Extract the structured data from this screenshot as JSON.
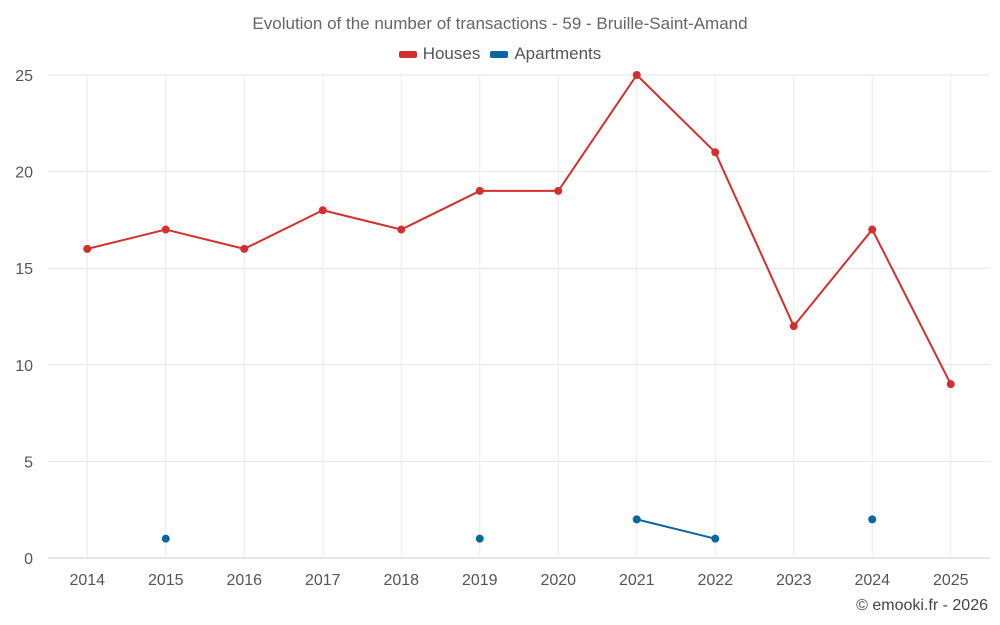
{
  "chart_data": {
    "type": "line",
    "title": "Evolution of the number of transactions - 59 - Bruille-Saint-Amand",
    "xlabel": "",
    "ylabel": "",
    "categories": [
      "2014",
      "2015",
      "2016",
      "2017",
      "2018",
      "2019",
      "2020",
      "2021",
      "2022",
      "2023",
      "2024",
      "2025"
    ],
    "ylim": [
      0,
      25
    ],
    "yticks": [
      0,
      5,
      10,
      15,
      20,
      25
    ],
    "grid": true,
    "legend_position": "top-center",
    "series": [
      {
        "name": "Houses",
        "color": "#d32f2f",
        "values": [
          16,
          17,
          16,
          18,
          17,
          19,
          19,
          25,
          21,
          12,
          17,
          9
        ]
      },
      {
        "name": "Apartments",
        "color": "#0a66a0",
        "values": [
          null,
          1,
          null,
          null,
          null,
          1,
          null,
          2,
          1,
          null,
          2,
          null
        ]
      }
    ]
  },
  "credit": "© emooki.fr - 2026"
}
